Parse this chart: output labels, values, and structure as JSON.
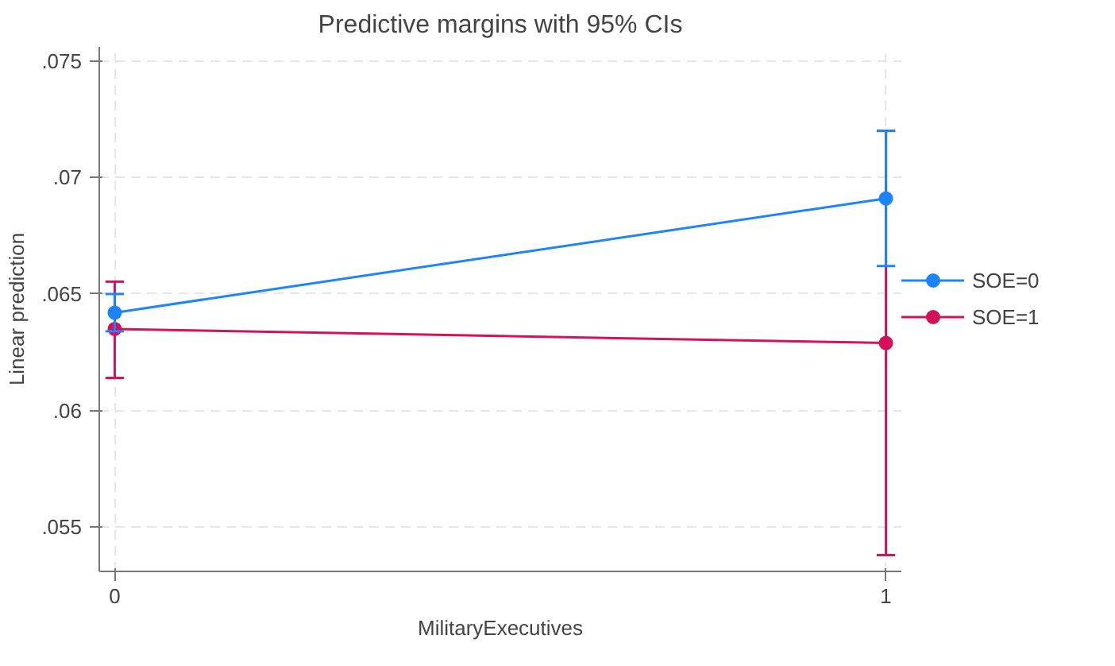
{
  "chart_data": {
    "type": "line",
    "title": "Predictive margins with 95% CIs",
    "xlabel": "MilitaryExecutives",
    "ylabel": "Linear prediction",
    "x": [
      0,
      1
    ],
    "series": [
      {
        "name": "SOE=0",
        "color": "#1a85ff",
        "values": [
          0.0642,
          0.0691
        ],
        "errors": [
          [
            0.0634,
            0.065
          ],
          [
            0.0662,
            0.072
          ]
        ]
      },
      {
        "name": "SOE=1",
        "color": "#d41159",
        "values": [
          0.0635,
          0.0629
        ],
        "errors": [
          [
            0.0614,
            0.06553
          ],
          [
            0.0538,
            0.072
          ]
        ]
      }
    ],
    "xlim": [
      -0.02,
      1.02
    ],
    "xticks": [
      0,
      1
    ],
    "ylim": [
      0.0531,
      0.0756
    ],
    "yticks": [
      {
        "value": 0.055,
        "label": ".055"
      },
      {
        "value": 0.06,
        "label": ".06"
      },
      {
        "value": 0.065,
        "label": ".065"
      },
      {
        "value": 0.07,
        "label": ".07"
      },
      {
        "value": 0.075,
        "label": ".075"
      }
    ],
    "grid": true,
    "legend": "right",
    "marker": "circle",
    "line_style": "solid"
  }
}
